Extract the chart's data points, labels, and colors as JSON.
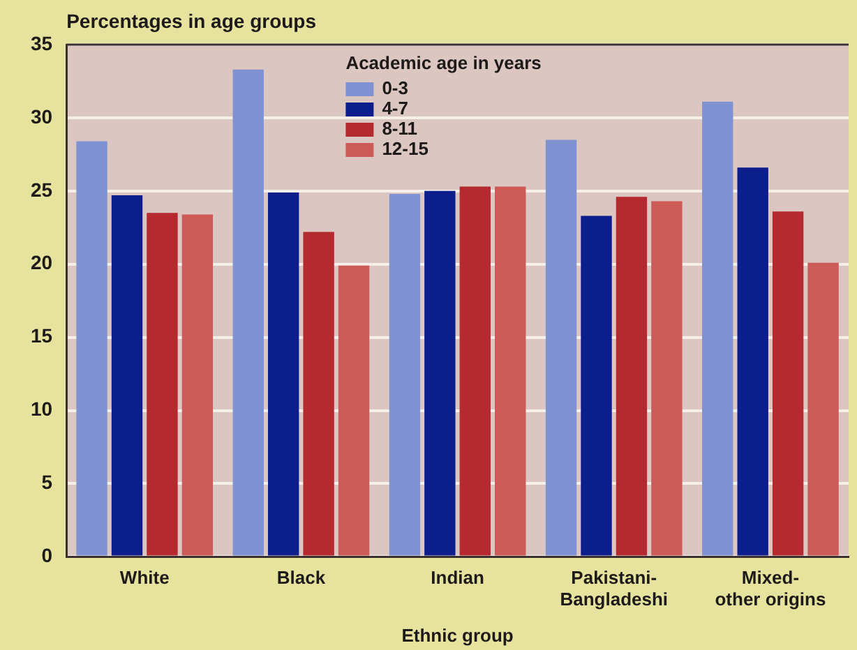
{
  "chart_data": {
    "type": "bar",
    "ylabel": "Percentages in age groups",
    "xlabel": "Ethnic group",
    "legend_title": "Academic age in years",
    "categories": [
      "White",
      "Black",
      "Indian",
      "Pakistani-Bangladeshi",
      "Mixed-other origins"
    ],
    "series": [
      {
        "name": "0-3",
        "color": "#7f92d2",
        "values": [
          28.4,
          33.3,
          24.8,
          28.5,
          31.1
        ]
      },
      {
        "name": "4-7",
        "color": "#0c1e8c",
        "values": [
          24.7,
          24.9,
          25.0,
          23.3,
          26.6
        ]
      },
      {
        "name": "8-11",
        "color": "#b52a2e",
        "values": [
          23.5,
          22.2,
          25.3,
          24.6,
          23.6
        ]
      },
      {
        "name": "12-15",
        "color": "#cc5b57",
        "values": [
          23.4,
          19.9,
          25.3,
          24.3,
          20.1
        ]
      }
    ],
    "ylim": [
      0,
      35
    ],
    "yticks": [
      0,
      5,
      10,
      15,
      20,
      25,
      30,
      35
    ],
    "grid": "y",
    "legend": "top"
  }
}
